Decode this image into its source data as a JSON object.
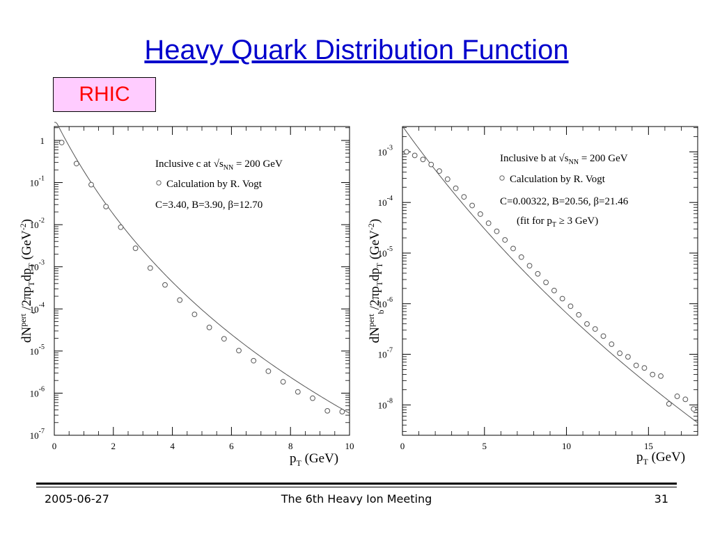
{
  "slide": {
    "title": "Heavy Quark Distribution Function",
    "badge": "RHIC"
  },
  "footer": {
    "date": "2005-06-27",
    "meeting": "The 6th Heavy Ion Meeting",
    "page": "31"
  },
  "chart_data": [
    {
      "type": "scatter",
      "ylabel": "dN^{pert}_c/2πp_T dp_T (GeV^{-2})",
      "xlabel": "p_T (GeV)",
      "xlim": [
        0,
        10
      ],
      "ylim_log10": [
        -7,
        0.33
      ],
      "y_scale": "log",
      "x_ticks": [
        "0",
        "2",
        "4",
        "6",
        "8",
        "10"
      ],
      "y_ticks": [
        {
          "exp": 0,
          "label": "1"
        },
        {
          "exp": -1,
          "label": "10^-1"
        },
        {
          "exp": -2,
          "label": "10^-2"
        },
        {
          "exp": -3,
          "label": "10^-3"
        },
        {
          "exp": -4,
          "label": "10^-4"
        },
        {
          "exp": -5,
          "label": "10^-5"
        },
        {
          "exp": -6,
          "label": "10^-6"
        },
        {
          "exp": -7,
          "label": "10^-7"
        }
      ],
      "annotations": [
        "Inclusive c at √s_NN = 200 GeV",
        "Calculation by R. Vogt",
        "C=3.40, B=3.90, β=12.70"
      ],
      "series": [
        {
          "name": "Calculation by R. Vogt",
          "marker": "open-circle",
          "x": [
            0.25,
            0.75,
            1.25,
            1.75,
            2.25,
            2.75,
            3.25,
            3.75,
            4.25,
            4.75,
            5.25,
            5.75,
            6.25,
            6.75,
            7.25,
            7.75,
            8.25,
            8.75,
            9.25,
            9.75
          ],
          "log10y": [
            -0.05,
            -0.55,
            -1.05,
            -1.57,
            -2.06,
            -2.56,
            -3.03,
            -3.43,
            -3.79,
            -4.13,
            -4.44,
            -4.71,
            -4.99,
            -5.23,
            -5.48,
            -5.73,
            -5.97,
            -6.12,
            -6.42,
            -6.44
          ]
        },
        {
          "name": "fit",
          "type": "line",
          "params": {
            "C": 3.4,
            "B": 3.9,
            "beta": 12.7
          }
        }
      ]
    },
    {
      "type": "scatter",
      "ylabel": "dN^{pert}_b/2πp_T dp_T (GeV^{-2})",
      "xlabel": "p_T (GeV)",
      "xlim": [
        0,
        18
      ],
      "ylim_log10": [
        -8.6,
        -2.5
      ],
      "y_scale": "log",
      "x_ticks": [
        "0",
        "5",
        "10",
        "15"
      ],
      "y_ticks": [
        {
          "exp": -3,
          "label": "10^-3"
        },
        {
          "exp": -4,
          "label": "10^-4"
        },
        {
          "exp": -5,
          "label": "10^-5"
        },
        {
          "exp": -6,
          "label": "10^-6"
        },
        {
          "exp": -7,
          "label": "10^-7"
        },
        {
          "exp": -8,
          "label": "10^-8"
        }
      ],
      "annotations": [
        "Inclusive b at √s_NN = 200 GeV",
        "Calculation by R. Vogt",
        "C=0.00322, B=20.56, β=21.46",
        "(fit for p_T ≥ 3 GeV)"
      ],
      "series": [
        {
          "name": "Calculation by R. Vogt",
          "marker": "open-circle",
          "x": [
            0.25,
            0.75,
            1.25,
            1.75,
            2.25,
            2.75,
            3.25,
            3.75,
            4.25,
            4.75,
            5.25,
            5.75,
            6.25,
            6.75,
            7.25,
            7.75,
            8.25,
            8.75,
            9.25,
            9.75,
            10.25,
            10.75,
            11.25,
            11.75,
            12.25,
            12.75,
            13.25,
            13.75,
            14.25,
            14.75,
            15.25,
            15.75,
            16.25,
            16.75,
            17.25,
            17.75
          ],
          "log10y": [
            -3.0,
            -3.07,
            -3.15,
            -3.25,
            -3.38,
            -3.54,
            -3.72,
            -3.89,
            -4.06,
            -4.23,
            -4.41,
            -4.57,
            -4.74,
            -4.91,
            -5.08,
            -5.25,
            -5.41,
            -5.58,
            -5.74,
            -5.9,
            -6.05,
            -6.22,
            -6.4,
            -6.5,
            -6.64,
            -6.8,
            -6.98,
            -7.05,
            -7.22,
            -7.27,
            -7.4,
            -7.43,
            -7.98,
            -7.83,
            -7.89,
            -8.08
          ]
        },
        {
          "name": "fit",
          "type": "line",
          "params": {
            "C": 0.00322,
            "B": 20.56,
            "beta": 21.46
          }
        }
      ]
    }
  ]
}
